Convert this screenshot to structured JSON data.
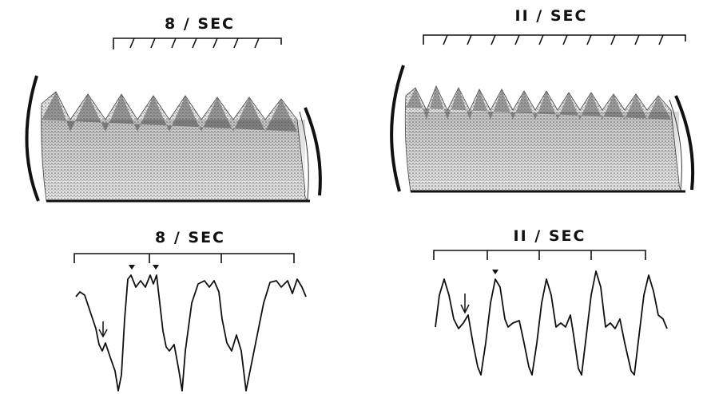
{
  "spectrograms": [
    {
      "label": "8 / SEC"
    },
    {
      "label": "II / SEC"
    }
  ],
  "traces": [
    {
      "label": "8 / SEC"
    },
    {
      "label": "II / SEC"
    }
  ]
}
